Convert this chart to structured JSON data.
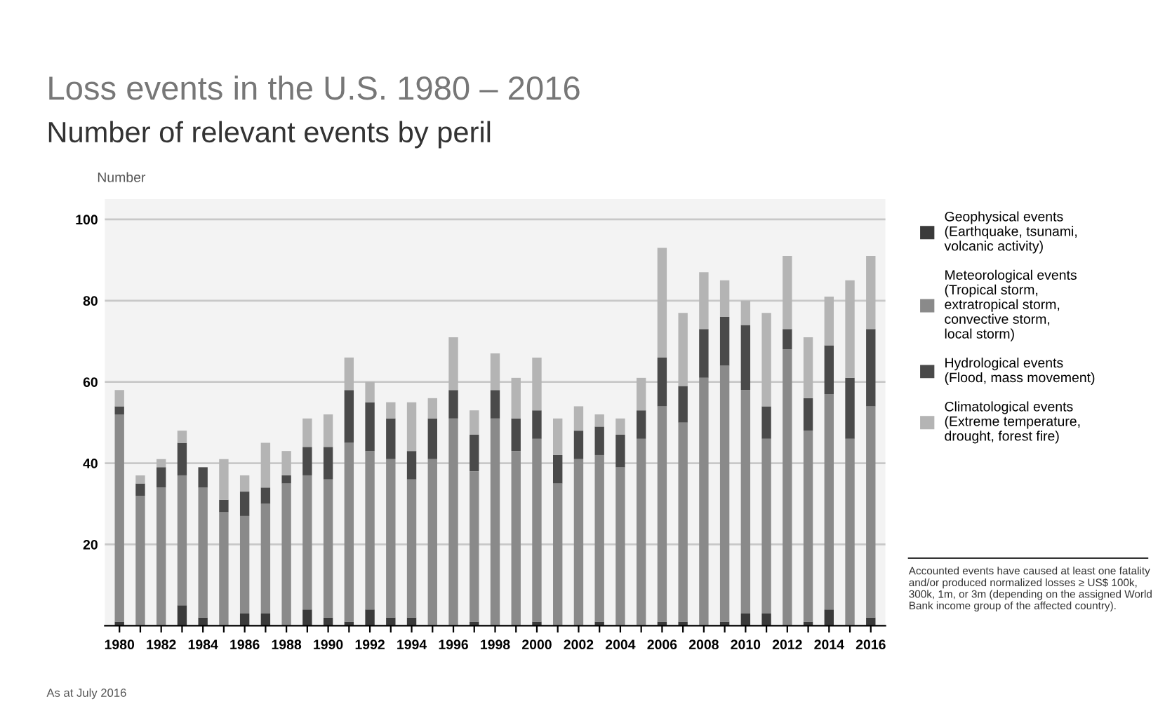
{
  "chart_data": {
    "type": "bar",
    "title": "Loss events in the U.S. 1980 – 2016",
    "subtitle": "Number of relevant events by peril",
    "ylabel": "Number",
    "categories": [
      "1980",
      null,
      "1982",
      null,
      "1984",
      null,
      "1986",
      null,
      "1988",
      null,
      "1990",
      null,
      "1992",
      null,
      "1994",
      null,
      "1996",
      null,
      "1998",
      null,
      "2000",
      null,
      "2002",
      null,
      "2004",
      null,
      "2006",
      null,
      "2008",
      null,
      "2010",
      null,
      "2012",
      null,
      "2014",
      null,
      "2016"
    ],
    "stacked": true,
    "series": [
      {
        "name": "Geophysical events\n(Earthquake, tsunami,\nvolcanic activity)",
        "color": "#3a3a3a",
        "values": [
          1,
          0,
          0,
          5,
          2,
          0,
          3,
          3,
          0,
          4,
          2,
          1,
          4,
          2,
          2,
          0,
          0,
          1,
          0,
          0,
          1,
          0,
          0,
          1,
          0,
          0,
          1,
          1,
          0,
          1,
          3,
          3,
          0,
          1,
          4,
          0,
          2
        ]
      },
      {
        "name": "Meteorological events\n(Tropical storm,\nextratropical storm,\nconvective storm,\nlocal storm)",
        "color": "#8a8a8a",
        "values": [
          51,
          32,
          34,
          32,
          32,
          28,
          24,
          27,
          35,
          33,
          34,
          44,
          39,
          39,
          34,
          41,
          51,
          37,
          51,
          43,
          45,
          35,
          41,
          41,
          39,
          46,
          53,
          49,
          61,
          63,
          55,
          43,
          68,
          47,
          53,
          46,
          52
        ]
      },
      {
        "name": "Hydrological events\n(Flood, mass movement)",
        "color": "#4a4a4a",
        "values": [
          2,
          3,
          5,
          8,
          5,
          3,
          6,
          4,
          2,
          7,
          8,
          13,
          12,
          10,
          7,
          10,
          7,
          9,
          7,
          8,
          7,
          7,
          7,
          7,
          8,
          7,
          12,
          9,
          12,
          12,
          16,
          8,
          5,
          8,
          12,
          15,
          19
        ]
      },
      {
        "name": "Climatological events\n(Extreme temperature,\ndrought, forest fire)",
        "color": "#b4b4b4",
        "values": [
          4,
          2,
          2,
          3,
          0,
          10,
          4,
          11,
          6,
          7,
          8,
          8,
          5,
          4,
          12,
          5,
          13,
          6,
          9,
          10,
          13,
          9,
          6,
          3,
          4,
          8,
          27,
          18,
          14,
          9,
          6,
          23,
          18,
          15,
          12,
          24,
          18
        ]
      }
    ],
    "ylim": [
      0,
      105
    ],
    "yticks": [
      {
        "value": 0,
        "label": null
      },
      20,
      40,
      60,
      80,
      100
    ],
    "grid": "y",
    "legend": "right",
    "annotations": [
      "Accounted events have caused at least one fatality and/or produced normalized losses ≥ US$ 100k, 300k, 1m, or 3m (depending on the assigned World Bank income group of the affected country).",
      "As at July 2016"
    ]
  }
}
